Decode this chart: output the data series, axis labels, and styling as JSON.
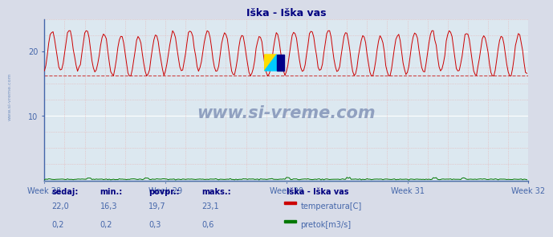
{
  "title": "Iška - Iška vas",
  "bg_color": "#d8dce8",
  "plot_bg_color": "#dce8f0",
  "grid_color_white": "#ffffff",
  "grid_color_pink": "#e8b0b0",
  "x_tick_labels": [
    "Week 28",
    "Week 29",
    "Week 30",
    "Week 31",
    "Week 32"
  ],
  "x_tick_positions": [
    0,
    84,
    168,
    252,
    336
  ],
  "y_ticks": [
    10,
    20
  ],
  "ylim": [
    0,
    25
  ],
  "xlim": [
    0,
    336
  ],
  "temp_color": "#cc0000",
  "flow_color": "#007700",
  "avg_line_color": "#cc4444",
  "avg_line_value": 16.3,
  "watermark_text": "www.si-vreme.com",
  "watermark_color": "#8899bb",
  "sidebar_text": "www.si-vreme.com",
  "sidebar_color": "#6688bb",
  "temp_min": 16.3,
  "temp_max": 23.1,
  "temp_avg": 19.7,
  "temp_current": 22.0,
  "flow_min": 0.2,
  "flow_max": 0.6,
  "flow_avg": 0.3,
  "flow_current": 0.2,
  "legend_title": "Iška - Iška vas",
  "legend_items": [
    {
      "label": "temperatura[C]",
      "color": "#cc0000"
    },
    {
      "label": "pretok[m3/s]",
      "color": "#007700"
    }
  ],
  "table_headers": [
    "sedaj:",
    "min.:",
    "povpr.:",
    "maks.:"
  ],
  "table_values_temp": [
    "22,0",
    "16,3",
    "19,7",
    "23,1"
  ],
  "table_values_flow": [
    "0,2",
    "0,2",
    "0,3",
    "0,6"
  ],
  "n_points": 336,
  "temp_base": 19.7,
  "temp_amplitude": 3.2,
  "title_color": "#000080",
  "axis_label_color": "#4466aa",
  "table_header_color": "#000080",
  "table_value_color": "#4466aa"
}
